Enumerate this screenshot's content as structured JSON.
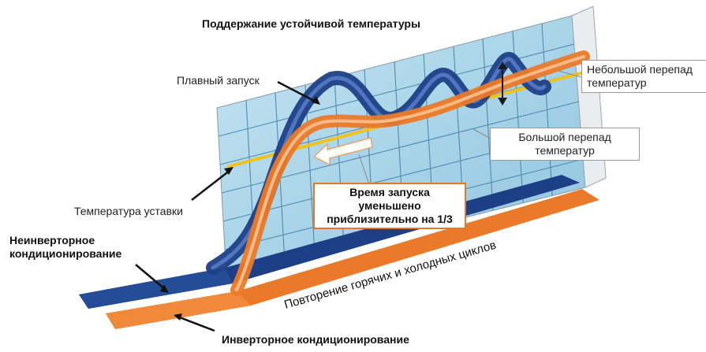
{
  "title": "Поддержание устойчивой температуры",
  "labels": {
    "smooth_start": "Плавный запуск",
    "setpoint": "Температура уставки",
    "non_inverter_line1": "Неинверторное",
    "non_inverter_line2": "кондиционирование",
    "inverter": "Инверторное кондиционирование",
    "cycles": "Повторение горячих и холодных циклов",
    "small_diff_line1": "Небольшой перепад",
    "small_diff_line2": "температур",
    "large_diff_line1": "Большой перепад",
    "large_diff_line2": "температур",
    "startup_line1": "Время запуска уменьшено",
    "startup_line2": "приблизительно на 1/3"
  },
  "colors": {
    "grid_fill": "#a9d6ea",
    "grid_line": "#3f7fa8",
    "blue_band": "#1d3f86",
    "orange_band": "#ea7a2a",
    "setpoint_line": "#f2c21a"
  }
}
